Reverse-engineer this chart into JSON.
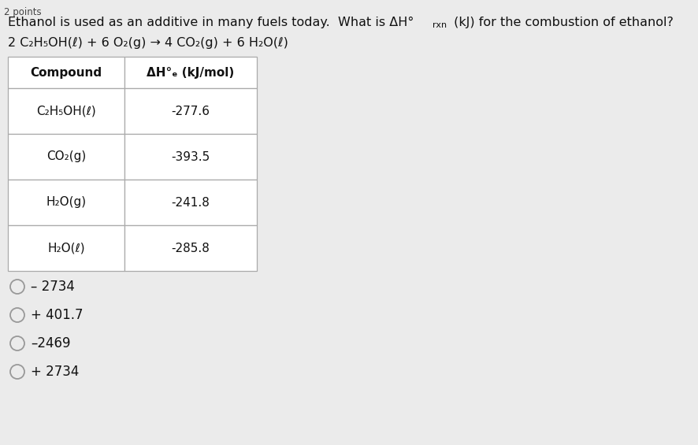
{
  "points_label": "2 points",
  "title_part1": "Ethanol is used as an additive in many fuels today.  What is ΔH°",
  "title_rxn": "rxn",
  "title_part2": " (kJ) for the combustion of ethanol?",
  "equation": "2 C₂H₅OH(ℓ) + 6 O₂(g) → 4 CO₂(g) + 6 H₂O(ℓ)",
  "table_header_col1": "Compound",
  "table_header_col2": "ΔH°ₑ (kJ/mol)",
  "table_data": [
    [
      "C₂H₅OH(ℓ)",
      "-277.6"
    ],
    [
      "CO₂(g)",
      "-393.5"
    ],
    [
      "H₂O(g)",
      "-241.8"
    ],
    [
      "H₂O(ℓ)",
      "-285.8"
    ]
  ],
  "choices": [
    "– 2734",
    "+ 401.7",
    "–2469",
    "+ 2734"
  ],
  "bg_color": "#ebebeb",
  "table_bg": "#ffffff",
  "text_color": "#111111",
  "border_color": "#aaaaaa"
}
